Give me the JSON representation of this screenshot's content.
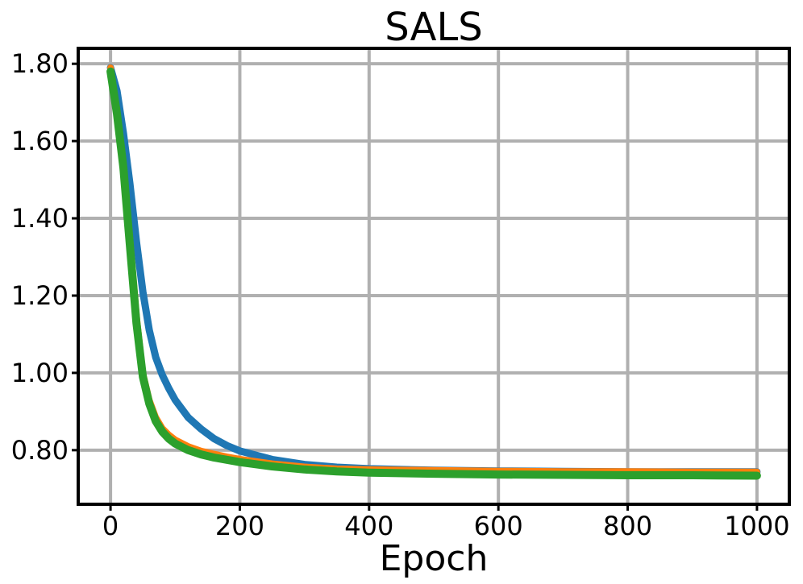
{
  "chart_data": {
    "type": "line",
    "title": "SALS",
    "xlabel": "Epoch",
    "ylabel": "",
    "xlim": [
      -50,
      1050
    ],
    "ylim": [
      0.66,
      1.84
    ],
    "xticks": [
      0,
      200,
      400,
      600,
      800,
      1000
    ],
    "xtick_labels": [
      "0",
      "200",
      "400",
      "600",
      "800",
      "1000"
    ],
    "yticks": [
      0.8,
      1.0,
      1.2,
      1.4,
      1.6,
      1.8
    ],
    "ytick_labels": [
      "0.80",
      "1.00",
      "1.20",
      "1.40",
      "1.60",
      "1.80"
    ],
    "grid": true,
    "legend": "none",
    "series": [
      {
        "color": "#1f77b4",
        "x": [
          0,
          10,
          20,
          30,
          40,
          50,
          60,
          70,
          80,
          90,
          100,
          120,
          140,
          160,
          180,
          200,
          250,
          300,
          350,
          400,
          500,
          600,
          700,
          800,
          900,
          1000
        ],
        "y": [
          1.79,
          1.73,
          1.62,
          1.49,
          1.34,
          1.21,
          1.11,
          1.04,
          0.995,
          0.96,
          0.93,
          0.885,
          0.855,
          0.83,
          0.812,
          0.798,
          0.776,
          0.763,
          0.756,
          0.752,
          0.748,
          0.746,
          0.745,
          0.744,
          0.744,
          0.744
        ]
      },
      {
        "color": "#ff7f0e",
        "x": [
          0,
          10,
          20,
          30,
          40,
          50,
          60,
          70,
          80,
          90,
          100,
          120,
          140,
          160,
          180,
          200,
          250,
          300,
          350,
          400,
          500,
          600,
          700,
          800,
          900,
          1000
        ],
        "y": [
          1.79,
          1.68,
          1.54,
          1.35,
          1.15,
          1.0,
          0.93,
          0.885,
          0.857,
          0.84,
          0.827,
          0.81,
          0.798,
          0.79,
          0.783,
          0.777,
          0.765,
          0.757,
          0.752,
          0.75,
          0.748,
          0.746,
          0.745,
          0.745,
          0.744,
          0.744
        ]
      },
      {
        "color": "#2ca02c",
        "x": [
          0,
          10,
          20,
          30,
          40,
          50,
          60,
          70,
          80,
          90,
          100,
          120,
          140,
          160,
          180,
          200,
          250,
          300,
          350,
          400,
          500,
          600,
          700,
          800,
          900,
          1000
        ],
        "y": [
          1.78,
          1.67,
          1.53,
          1.33,
          1.13,
          0.99,
          0.92,
          0.875,
          0.848,
          0.83,
          0.817,
          0.8,
          0.789,
          0.781,
          0.775,
          0.769,
          0.758,
          0.75,
          0.745,
          0.742,
          0.739,
          0.737,
          0.736,
          0.735,
          0.735,
          0.734
        ]
      }
    ]
  }
}
